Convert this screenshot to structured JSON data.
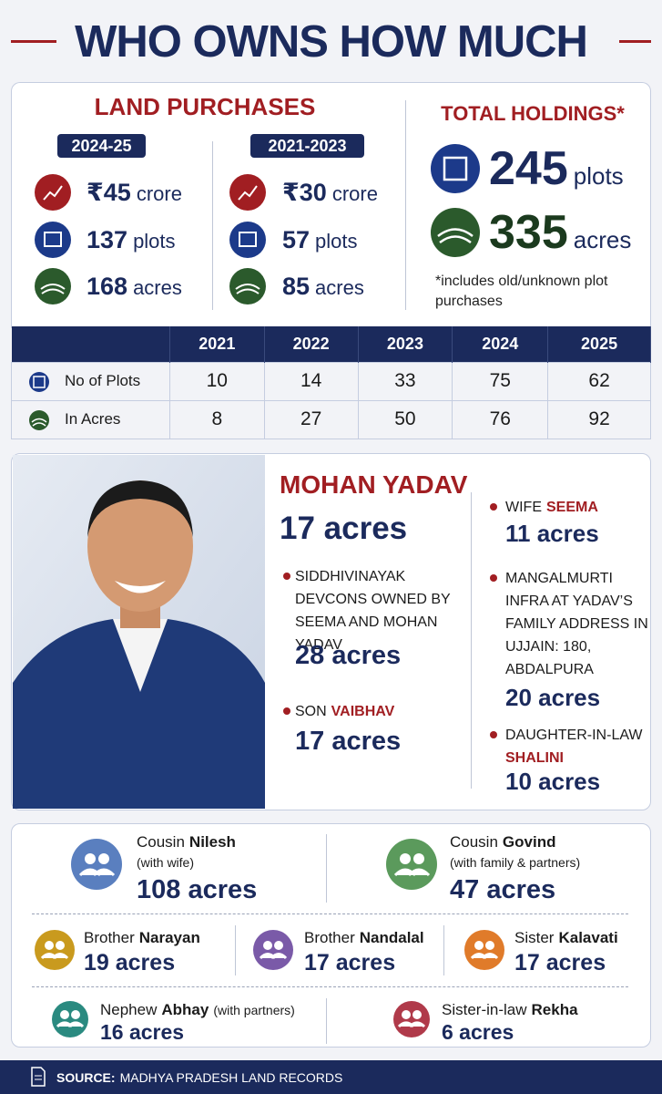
{
  "header": {
    "title": "WHO OWNS HOW MUCH"
  },
  "land_purchases": {
    "title": "LAND PURCHASES",
    "periods": [
      {
        "label": "2024-25",
        "items": [
          {
            "value": "₹45",
            "unit": "crore"
          },
          {
            "value": "137",
            "unit": "plots"
          },
          {
            "value": "168",
            "unit": "acres"
          }
        ]
      },
      {
        "label": "2021-2023",
        "items": [
          {
            "value": "₹30",
            "unit": "crore"
          },
          {
            "value": "57",
            "unit": "plots"
          },
          {
            "value": "85",
            "unit": "acres"
          }
        ]
      }
    ]
  },
  "total_holdings": {
    "title": "TOTAL HOLDINGS*",
    "items": [
      {
        "value": "245",
        "unit": "plots"
      },
      {
        "value": "335",
        "unit": "acres"
      }
    ],
    "note": "*includes old/unknown plot purchases"
  },
  "table": {
    "columns": [
      "2021",
      "2022",
      "2023",
      "2024",
      "2025"
    ],
    "rows": [
      {
        "label": "No of Plots",
        "cells": [
          10,
          14,
          33,
          75,
          62
        ]
      },
      {
        "label": "In Acres",
        "cells": [
          8,
          27,
          50,
          76,
          92
        ]
      }
    ]
  },
  "person": {
    "name": "MOHAN YADAV",
    "holding": "17 acres",
    "entries": [
      {
        "text": "SIDDHIVINAYAK DEVCONS OWNED BY SEEMA AND MOHAN YADAV",
        "holding": "28 acres"
      },
      {
        "relation": "SON",
        "name": "VAIBHAV",
        "holding": "17 acres"
      },
      {
        "relation": "WIFE",
        "name": "SEEMA",
        "holding": "11 acres"
      },
      {
        "text": "MANGALMURTI INFRA AT YADAV’S FAMILY ADDRESS IN UJJAIN: 180, ABDALPURA",
        "holding": "20 acres"
      },
      {
        "relation": "DAUGHTER-IN-LAW",
        "name": "SHALINI",
        "holding": "10 acres"
      }
    ]
  },
  "relatives": [
    {
      "relation": "Cousin",
      "name": "Nilesh",
      "note": "(with wife)",
      "holding": "108 acres"
    },
    {
      "relation": "Cousin",
      "name": "Govind",
      "note": "(with family & partners)",
      "holding": "47 acres"
    },
    {
      "relation": "Brother",
      "name": "Narayan",
      "holding": "19 acres"
    },
    {
      "relation": "Brother",
      "name": "Nandalal",
      "holding": "17 acres"
    },
    {
      "relation": "Sister",
      "name": "Kalavati",
      "holding": "17 acres"
    },
    {
      "relation": "Nephew",
      "name": "Abhay",
      "note": "(with partners)",
      "holding": "16 acres"
    },
    {
      "relation": "Sister-in-law",
      "name": "Rekha",
      "holding": "6 acres"
    }
  ],
  "footer": {
    "label": "SOURCE:",
    "text": "MADHYA PRADESH LAND RECORDS"
  }
}
